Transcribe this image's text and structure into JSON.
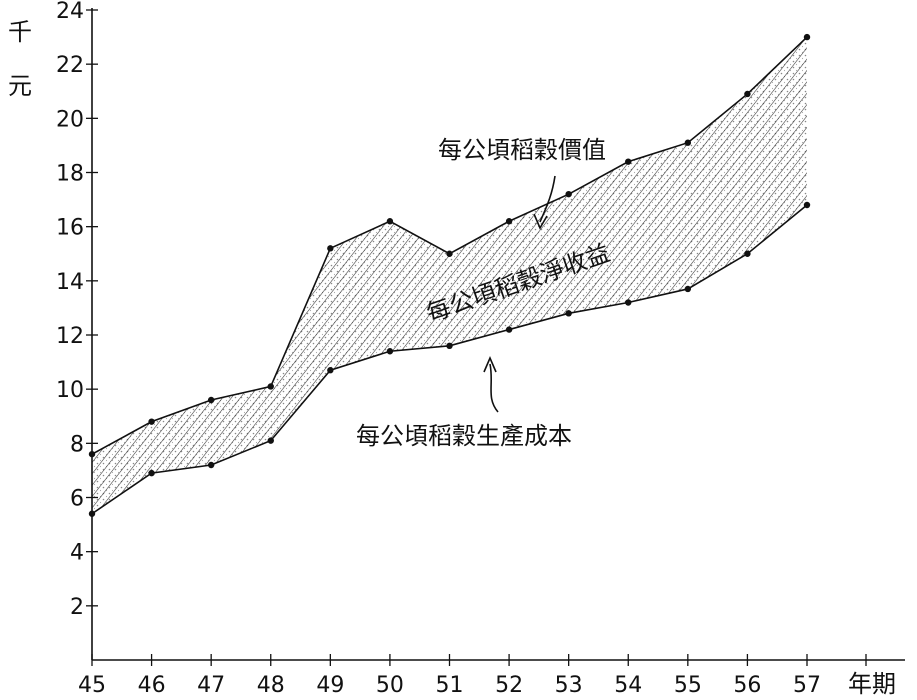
{
  "chart_data": {
    "type": "area",
    "title": "",
    "x": [
      45,
      46,
      47,
      48,
      49,
      50,
      51,
      52,
      53,
      54,
      55,
      56,
      57
    ],
    "xlim": [
      45,
      57
    ],
    "ylim": [
      0,
      24
    ],
    "y_ticks": [
      2,
      4,
      6,
      8,
      10,
      12,
      14,
      16,
      18,
      20,
      22,
      24
    ],
    "xlabel": "年期",
    "ylabel_lines": [
      "千",
      "元"
    ],
    "series": [
      {
        "name": "每公頃稻穀價值",
        "values": [
          7.6,
          8.8,
          9.6,
          10.1,
          15.2,
          16.2,
          15.0,
          16.2,
          17.2,
          18.4,
          19.1,
          20.9,
          23.0
        ]
      },
      {
        "name": "每公頃稻穀生產成本",
        "values": [
          5.4,
          6.9,
          7.2,
          8.1,
          10.7,
          11.4,
          11.6,
          12.2,
          12.8,
          13.2,
          13.7,
          15.0,
          16.8
        ]
      }
    ],
    "fill_label": "每公頃稻穀淨收益",
    "grid": false,
    "legend": "none",
    "colors": {
      "line": "#111111",
      "hatch": "#333333",
      "dots": "#888888"
    }
  }
}
